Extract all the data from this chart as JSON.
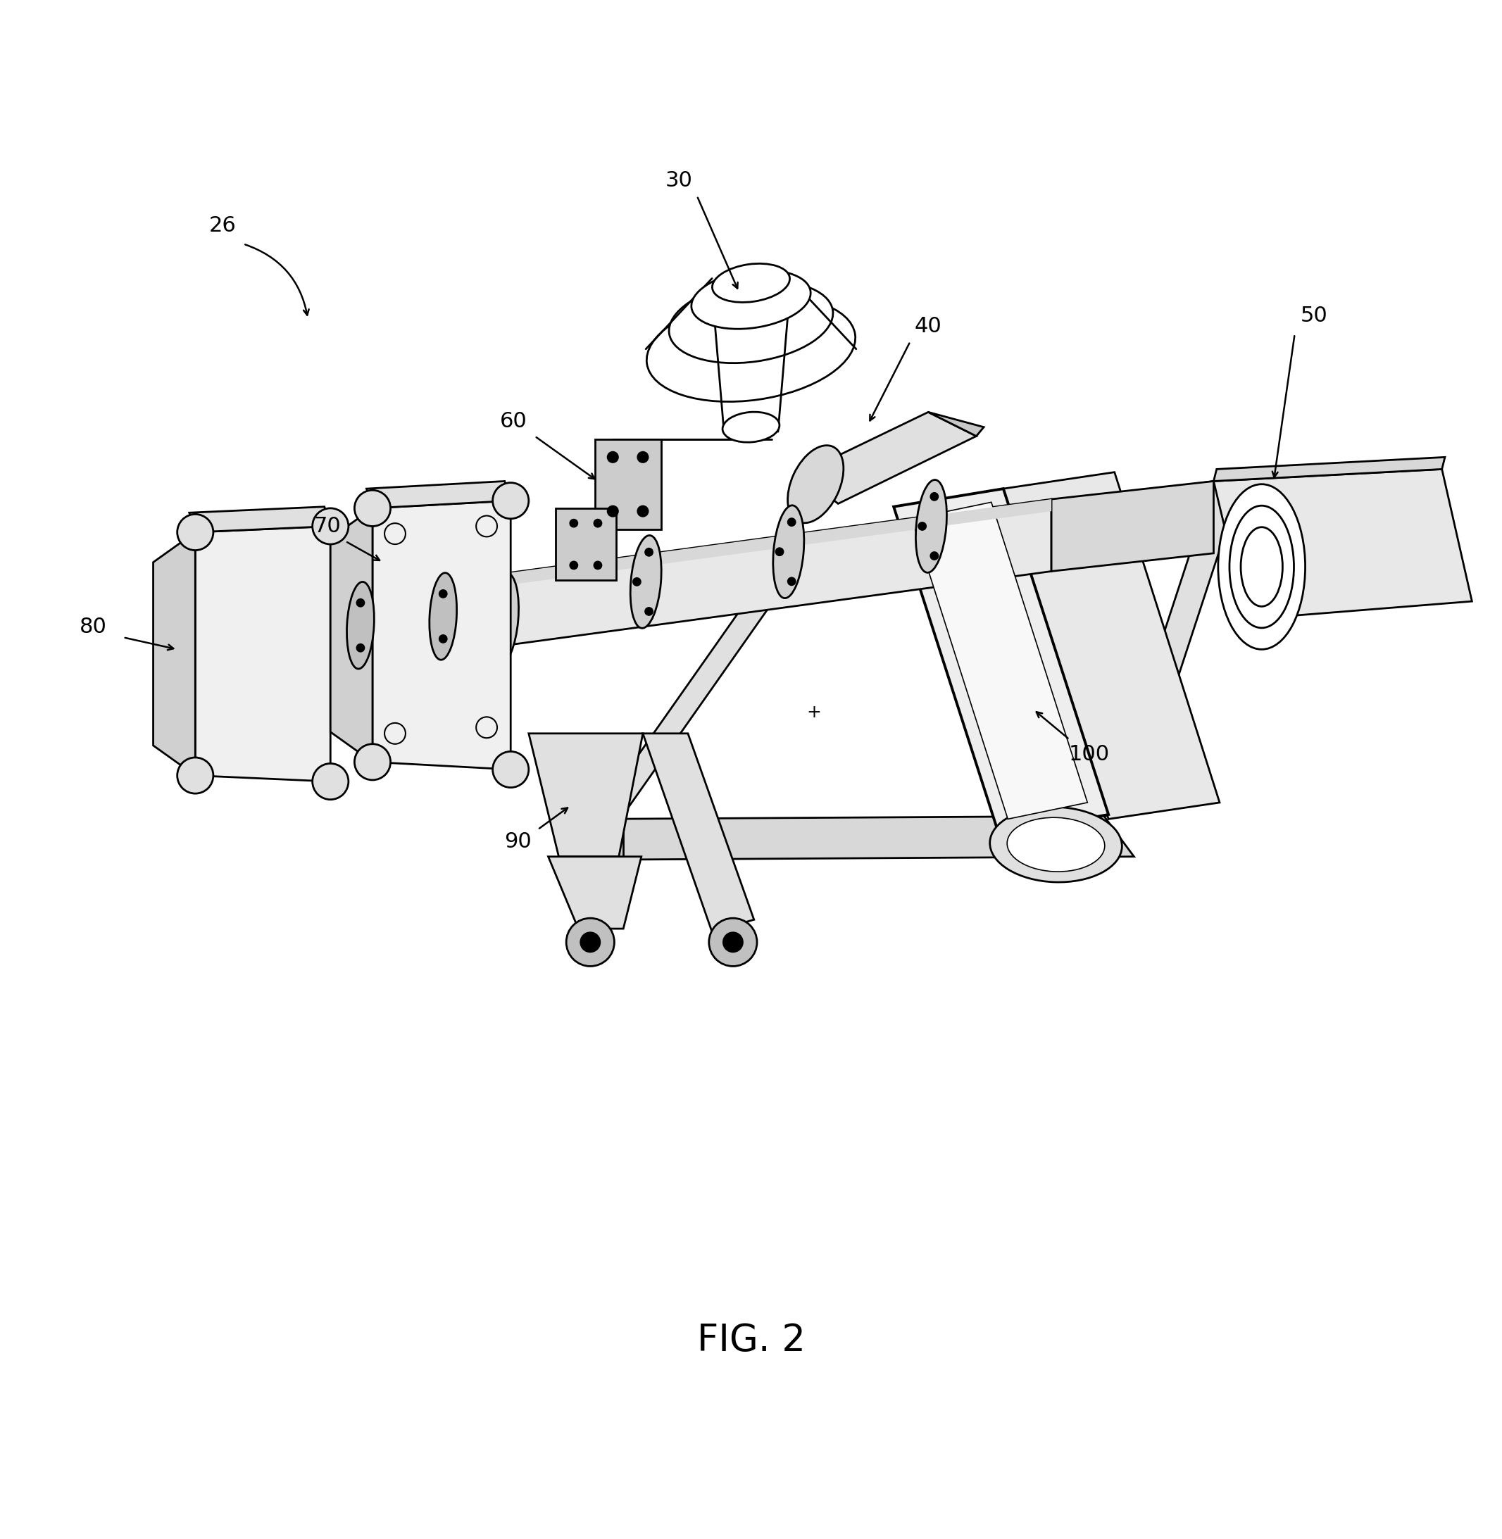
{
  "background_color": "#ffffff",
  "line_color": "#000000",
  "fig_label": "FIG. 2",
  "fig_label_fontsize": 38,
  "label_fontsize": 22,
  "lw_main": 2.0,
  "lw_thick": 2.8
}
